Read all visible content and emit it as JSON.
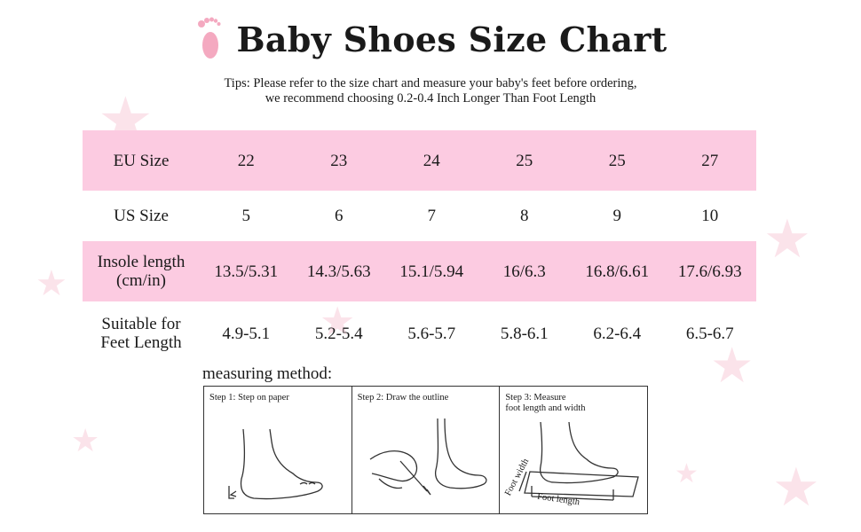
{
  "header": {
    "title": "Baby Shoes Size Chart",
    "tips_line1": "Tips: Please refer to the size chart and measure your baby's feet before ordering,",
    "tips_line2": "we recommend choosing 0.2-0.4 Inch Longer Than Foot Length"
  },
  "table": {
    "rows": [
      {
        "label": "EU Size",
        "values": [
          "22",
          "23",
          "24",
          "25",
          "25",
          "27"
        ]
      },
      {
        "label": "US Size",
        "values": [
          "5",
          "6",
          "7",
          "8",
          "9",
          "10"
        ]
      },
      {
        "label_line1": "Insole length",
        "label_line2": "(cm/in)",
        "values": [
          "13.5/5.31",
          "14.3/5.63",
          "15.1/5.94",
          "16/6.3",
          "16.8/6.61",
          "17.6/6.93"
        ]
      },
      {
        "label_line1": "Suitable for",
        "label_line2": "Feet Length",
        "values": [
          "4.9-5.1",
          "5.2-5.4",
          "5.6-5.7",
          "5.8-6.1",
          "6.2-6.4",
          "6.5-6.7"
        ]
      }
    ]
  },
  "method": {
    "label": "measuring method:",
    "steps": [
      {
        "caption": "Step 1: Step on paper"
      },
      {
        "caption": "Step 2: Draw the outline"
      },
      {
        "caption_line1": "Step 3: Measure",
        "caption_line2": "foot length and width",
        "foot_width": "Foot width",
        "foot_length": "Foot length"
      }
    ]
  },
  "colors": {
    "pink_row": "#fccbe1",
    "footprint": "#f4a9c0",
    "stars": "#fbe3ea"
  },
  "icons": {
    "title_icon": "footprint-icon"
  }
}
